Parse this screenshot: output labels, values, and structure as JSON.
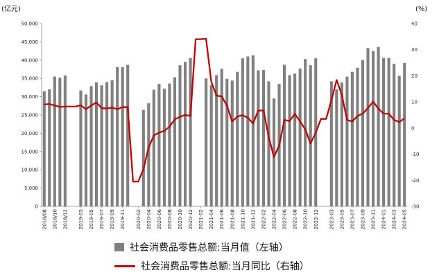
{
  "chart_data": {
    "type": "bar+line",
    "title": "",
    "left_unit": "(亿元)",
    "right_unit": "(%)",
    "xlabel": "",
    "ylabel_left": "",
    "ylabel_right": "",
    "left_axis": {
      "min": 0,
      "max": 50000,
      "step": 5000,
      "tick_labels": [
        "0",
        "5,000",
        "10,000",
        "15,000",
        "20,000",
        "25,000",
        "30,000",
        "35,000",
        "40,000",
        "45,000",
        "50,000"
      ]
    },
    "right_axis": {
      "min": -30,
      "max": 40,
      "step": 10,
      "tick_labels": [
        "-30",
        "-20",
        "-10",
        "0",
        "10",
        "20",
        "30",
        "40"
      ]
    },
    "x_tick_labels": [
      "2018/08",
      "2018/10",
      "2018/12",
      "2019-03",
      "2019-05",
      "2019-07",
      "2019-09",
      "2019-11",
      "2020-02",
      "2020-04",
      "2020-06",
      "2020-08",
      "2020-10",
      "2020-12",
      "2021-02",
      "2021-04",
      "2021-06",
      "2021-08",
      "2021-10",
      "2021-12",
      "2022-02",
      "2022-04",
      "2022-06",
      "2022-08",
      "2022-10",
      "2022-12",
      "2023-03",
      "2023-05",
      "2023-07",
      "2023-09",
      "2023-11",
      "2024-01",
      "2024-03",
      "2024-05"
    ],
    "months": [
      "2018-08",
      "2018-09",
      "2018-10",
      "2018-11",
      "2018-12",
      "2019-01",
      "2019-02",
      "2019-03",
      "2019-04",
      "2019-05",
      "2019-06",
      "2019-07",
      "2019-08",
      "2019-09",
      "2019-10",
      "2019-11",
      "2019-12",
      "2020-01",
      "2020-02",
      "2020-03",
      "2020-04",
      "2020-05",
      "2020-06",
      "2020-07",
      "2020-08",
      "2020-09",
      "2020-10",
      "2020-11",
      "2020-12",
      "2021-01",
      "2021-02",
      "2021-03",
      "2021-04",
      "2021-05",
      "2021-06",
      "2021-07",
      "2021-08",
      "2021-09",
      "2021-10",
      "2021-11",
      "2021-12",
      "2022-01",
      "2022-02",
      "2022-03",
      "2022-04",
      "2022-05",
      "2022-06",
      "2022-07",
      "2022-08",
      "2022-09",
      "2022-10",
      "2022-11",
      "2022-12",
      "2023-01",
      "2023-02",
      "2023-03",
      "2023-04",
      "2023-05",
      "2023-06",
      "2023-07",
      "2023-08",
      "2023-09",
      "2023-10",
      "2023-11",
      "2023-12",
      "2024-01",
      "2024-02",
      "2024-03",
      "2024-04",
      "2024-05"
    ],
    "series": [
      {
        "name": "社会消费品零售总额:当月值（左轴）",
        "type": "bar",
        "color": "#808080",
        "axis": "left",
        "values": [
          31500,
          32000,
          35500,
          35200,
          35800,
          null,
          null,
          31700,
          30600,
          32900,
          33900,
          33100,
          34000,
          34500,
          38100,
          38100,
          38700,
          null,
          null,
          26400,
          28200,
          31900,
          33500,
          32200,
          33600,
          35300,
          38600,
          39500,
          40600,
          null,
          null,
          35000,
          33200,
          35900,
          37600,
          34900,
          34400,
          36800,
          40500,
          41000,
          41300,
          37200,
          37300,
          34200,
          29500,
          33500,
          38700,
          35900,
          36300,
          37700,
          40300,
          38600,
          40500,
          null,
          null,
          34200,
          32000,
          33900,
          35500,
          36800,
          37900,
          40000,
          43300,
          42500,
          43600,
          40600,
          40600,
          39000,
          35700,
          39200
        ]
      },
      {
        "name": "社会消费品零售总额:当月同比（右轴）",
        "type": "line",
        "color": "#c00000",
        "axis": "right",
        "values": [
          9.0,
          9.2,
          8.6,
          8.1,
          8.2,
          8.2,
          8.2,
          8.7,
          7.2,
          8.6,
          9.8,
          7.6,
          7.5,
          7.8,
          7.2,
          8.0,
          8.0,
          -20.5,
          -20.5,
          -15.8,
          -7.5,
          -2.8,
          -1.8,
          -1.1,
          0.5,
          3.3,
          4.3,
          5.0,
          4.6,
          34.0,
          34.0,
          34.2,
          17.7,
          12.4,
          12.1,
          8.5,
          2.5,
          4.4,
          4.9,
          3.9,
          1.7,
          6.7,
          6.7,
          -3.5,
          -11.1,
          -6.7,
          3.1,
          2.7,
          5.4,
          2.5,
          -0.5,
          -5.9,
          -1.8,
          3.5,
          3.5,
          10.6,
          18.4,
          12.7,
          3.1,
          2.5,
          4.6,
          5.5,
          7.6,
          10.1,
          7.4,
          5.5,
          5.5,
          3.1,
          2.3,
          3.7
        ]
      }
    ],
    "legend": {
      "placement": "bottom"
    },
    "grid": false
  }
}
